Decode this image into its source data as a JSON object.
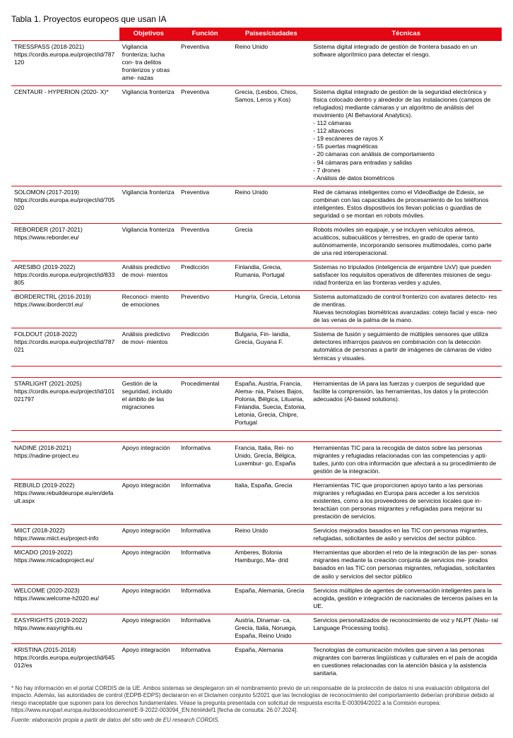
{
  "title": "Tabla 1. Proyectos europeos que usan IA",
  "columns": {
    "c2": "Objetivos",
    "c3": "Función",
    "c4": "Países/ciudades",
    "c5": "Técnicas"
  },
  "rows": [
    {
      "name": "TRESSPASS (2018-2021)",
      "url": "https://cordis.europa.eu/project/id/787120",
      "objetivos": "Vigilancia fronteriza; lucha con- tra delitos fronterizos y otras ame- nazas",
      "funcion": "Preventiva",
      "paises": "Reino Unido",
      "tecnicas": "Sistema digital integrado de gestión de frontera basado en un software algorítmico para detectar el riesgo."
    },
    {
      "name": "CENTAUR - HYPERION (2020- X)*",
      "url": "",
      "objetivos": "Vigilancia fronteriza",
      "funcion": "Preventiva",
      "paises": "Grecia, (Lesbos, Chios, Samos, Leros y Kos)",
      "tecnicas": "Sistema digital integrado de gestión de la seguridad electrónica y física colocado dentro y alrededor de las instalaciones (campos de refugiados) mediante cámaras y un algoritmo de análisis del movimiento (AI Behavioral Analytics).\n- 112 cámaras\n- 112 altavoces\n- 19 escáneres de rayos X\n- 55 puertas magnéticas\n- 20 cámaras con análisis de comportamiento\n- 94 cámaras para entradas y salidas\n- 7 drones\n- Análisis de datos biométricos"
    },
    {
      "name": "SOLOMON (2017-2019)",
      "url": "https://cordis.europa.eu/project/id/705020",
      "objetivos": "Vigilancia fronteriza",
      "funcion": "Preventiva",
      "paises": "Reino Unido",
      "tecnicas": "Red de cámaras inteligentes como el VideoBadge de Edesix, se combinan con las capacidades de procesamiento de los teléfonos inteligentes. Estos dispositivos los llevan policías o guardias de seguridad o se montan en robots móviles."
    },
    {
      "name": "REBORDER (2017-2021)",
      "url": "https://www.reborder.eu/",
      "objetivos": "Vigilancia fronteriza",
      "funcion": "Preventiva",
      "paises": "Grecia",
      "tecnicas": "Robots móviles sin equipaje, y se incluyen vehículos aéreos, acuáticos, subacuáticos y terrestres, en grado de operar tanto autónomamente, incorporando sensores multimodales, como parte de una red interoperacional."
    },
    {
      "name": "ARESIBO (2019-2022)",
      "url": "https://cordis.europa.eu/project/id/833805",
      "objetivos": "Análisis predictivo de movi- mientos",
      "funcion": "Predicción",
      "paises": "Finlandia, Grecia, Rumania, Portugal",
      "tecnicas": "Sistemas no tripulados (inteligencia de enjambre UxV) que pueden satisfacer los requisitos operativos de diferentes misiones de segu- ridad fronteriza en las fronteras verdes y azules."
    },
    {
      "name": "iBORDERCTRL (2016-2019)",
      "url": "https://www.iborderctrl.eu/",
      "objetivos": "Reconoci- miento de emociones",
      "funcion": "Preventivo",
      "paises": "Hungría, Grecia, Letonia",
      "tecnicas": "Sistema automatizado de control fronterizo con avatares detecto- res de mentiras.\nNuevas tecnologías biométricas avanzadas: cotejo facial y esca- neo de las venas de la palma de la mano."
    },
    {
      "name": "FOLDOUT (2018-2022)",
      "url": "https://cordis.europa.eu/project/id/787021",
      "objetivos": "Análisis predictivo de movi- mientos",
      "funcion": "Predicción",
      "paises": "Bulgaria, Fin- landia, Grecia, Guyana F.",
      "tecnicas": "Sistema de fusión y seguimiento de múltiples sensores que utiliza detectores infrarrojos pasivos en combinación con la detección automática de personas a partir de imágenes de cámaras de vídeo térmicas y visuales."
    },
    {
      "spacer": true
    },
    {
      "name": "STARLIGHT (2021-2025)",
      "url": "https://cordis.europa.eu/project/id/101021797",
      "objetivos": "Gestión de la seguridad, incluido el ámbito de las migraciones",
      "funcion": "Procedimental",
      "paises": "España, Austria, Francia, Alema- nia, Países Bajos, Polonia, Bélgica, Lituania, Finlandia, Suecia, Estonia, Letonia, Grecia, Chipre, Portugal",
      "tecnicas": "Herramientas de IA para las fuerzas y cuerpos de seguridad que facilite la comprensión, las herramientas, los datos y la protección adecuados (AI-based solutions)."
    },
    {
      "spacer": true
    },
    {
      "name": "NADINE (2018-2021)",
      "url": "https://nadine-project.eu",
      "objetivos": "Apoyo integración",
      "funcion": "Informativa",
      "paises": "Francia, Italia, Rei- no Unido, Grecia, Bélgica, Luxembur- go, España",
      "tecnicas": "Herramientas TIC para la recogida de datos sobre las personas migrantes y refugiadas relacionadas con las competencias y apti- tudes, junto con otra información que afectará a su procedimiento de gestión de la integración."
    },
    {
      "name": "REBUILD (2019-2022)",
      "url": "https://www.rebuildeurope.eu/en/default.aspx",
      "objetivos": "Apoyo integración",
      "funcion": "Informativa",
      "paises": "Italia, España, Grecia",
      "tecnicas": "Herramientas TIC que proporcionen apoyo tanto a las personas migrantes y refugiadas en Europa para acceder a los servicios existentes, como a los proveedores de servicios locales que in- teractúan con personas migrantes y refugiadas para mejorar su prestación de servicios."
    },
    {
      "name": "MIICT (2018-2022)",
      "url": "https://www.miict.eu/project-info",
      "objetivos": "Apoyo integración",
      "funcion": "Informativa",
      "paises": "Reino Unido",
      "tecnicas": "Servicios mejorados basados en las TIC con personas migrantes, refugiadas, solicitantes de asilo y servicios del sector público."
    },
    {
      "name": "MICADO (2019-2022)",
      "url": "https://www.micadoproject.eu/",
      "objetivos": "Apoyo integración",
      "funcion": "Informativa",
      "paises": "Amberes, Bolonia Hamburgo, Ma- drid",
      "tecnicas": "Herramientas que aborden el reto de la integración de las per- sonas migrantes mediante la creación conjunta de servicios me- jorados basados en las TIC con personas migrantes, refugiadas, solicitantes de asilo y servicios del sector público"
    },
    {
      "name": "WELCOME (2020-2023)",
      "url": "https://www.welcome-h2020.eu/",
      "objetivos": "Apoyo integración",
      "funcion": "Informativa",
      "paises": "España, Alemania, Grecia",
      "tecnicas": "Servicios múltiples de agentes de conversación inteligentes para la acogida, gestión e integración de nacionales de terceros países en la UE."
    },
    {
      "name": "EASYRIGHTS (2019-2022)",
      "url": "https://www.easyrights.eu",
      "objetivos": "Apoyo integración",
      "funcion": "Informativa",
      "paises": "Austria, Dinamar- ca, Grecia, Italia, Noruega, España, Reino Unido",
      "tecnicas": "Servicios personalizados de reconocimiento de voz y NLPT (Natu- ral Language Processing tools)."
    },
    {
      "name": "KRISTINA (2015-2018)",
      "url": "https://cordis.europa.eu/project/id/645012/es",
      "objetivos": "Apoyo integración",
      "funcion": "Informativa",
      "paises": "España, Alemania",
      "tecnicas": "Tecnologías de comunicación móviles que sirven a las personas migrantes con barreras lingüísticas y culturales en el país de acogida en cuestiones relacionadas con la atención básica y la asistencia sanitaria."
    }
  ],
  "footnote": "* No hay información en el portal CORDIS de la UE. Ambos sistemas se desplegaron sin el nombramiento previo de un responsable de la protección de datos ni una evaluación obligatoria del impacto. Además, las autoridades de control (EDPB-EDPS) declararon en el Dictamen conjunto 5/2021 que las tecnologías de reconocimiento del comportamiento deberían prohibirse debido al riesgo inaceptable que suponen para los derechos fundamentales. Véase la pregunta presentada con solicitud de respuesta escrita E-003094/2022 a la Comisión europea: https://www.europarl.europa.eu/doceo/document/E-9-2022-003094_EN.html#def1 [fecha de consulta: 26.07.2024].",
  "source": "Fuente: elaboración propia a partir de datos del sitio web de EU research CORDIS."
}
